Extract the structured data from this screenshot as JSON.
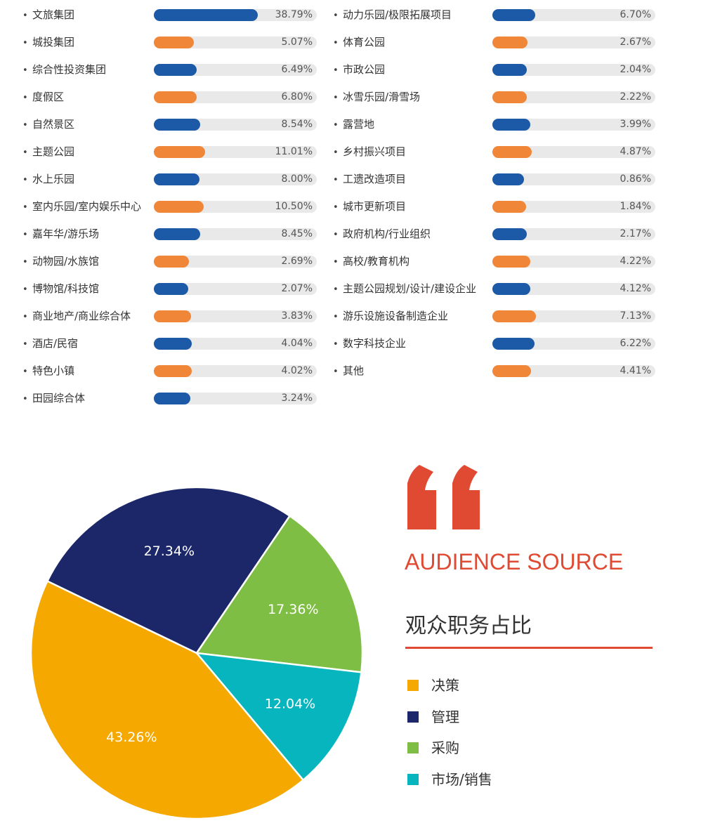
{
  "colors": {
    "bar_blue": "#1c5aa8",
    "bar_orange": "#f08637",
    "track": "#e9e9e9",
    "accent": "#e04a32"
  },
  "bars": {
    "bullet": "•",
    "left": [
      {
        "label": "文旅集团",
        "value": 38.79,
        "display": "38.79%"
      },
      {
        "label": "城投集团",
        "value": 5.07,
        "display": "5.07%"
      },
      {
        "label": "综合性投资集团",
        "value": 6.49,
        "display": "6.49%"
      },
      {
        "label": "度假区",
        "value": 6.8,
        "display": "6.80%"
      },
      {
        "label": "自然景区",
        "value": 8.54,
        "display": "8.54%"
      },
      {
        "label": "主题公园",
        "value": 11.01,
        "display": "11.01%"
      },
      {
        "label": "水上乐园",
        "value": 8.0,
        "display": "8.00%"
      },
      {
        "label": "室内乐园/室内娱乐中心",
        "value": 10.5,
        "display": "10.50%"
      },
      {
        "label": "嘉年华/游乐场",
        "value": 8.45,
        "display": "8.45%"
      },
      {
        "label": "动物园/水族馆",
        "value": 2.69,
        "display": "2.69%"
      },
      {
        "label": "博物馆/科技馆",
        "value": 2.07,
        "display": "2.07%"
      },
      {
        "label": "商业地产/商业综合体",
        "value": 3.83,
        "display": "3.83%"
      },
      {
        "label": "酒店/民宿",
        "value": 4.04,
        "display": "4.04%"
      },
      {
        "label": "特色小镇",
        "value": 4.02,
        "display": "4.02%"
      },
      {
        "label": "田园综合体",
        "value": 3.24,
        "display": "3.24%"
      }
    ],
    "right": [
      {
        "label": "动力乐园/极限拓展项目",
        "value": 6.7,
        "display": "6.70%"
      },
      {
        "label": "体育公园",
        "value": 2.67,
        "display": "2.67%"
      },
      {
        "label": "市政公园",
        "value": 2.04,
        "display": "2.04%"
      },
      {
        "label": "冰雪乐园/滑雪场",
        "value": 2.22,
        "display": "2.22%"
      },
      {
        "label": "露营地",
        "value": 3.99,
        "display": "3.99%"
      },
      {
        "label": "乡村振兴项目",
        "value": 4.87,
        "display": "4.87%"
      },
      {
        "label": "工遗改造项目",
        "value": 0.86,
        "display": "0.86%"
      },
      {
        "label": "城市更新项目",
        "value": 1.84,
        "display": "1.84%"
      },
      {
        "label": "政府机构/行业组织",
        "value": 2.17,
        "display": "2.17%"
      },
      {
        "label": "高校/教育机构",
        "value": 4.22,
        "display": "4.22%"
      },
      {
        "label": "主题公园规划/设计/建设企业",
        "value": 4.12,
        "display": "4.12%"
      },
      {
        "label": "游乐设施设备制造企业",
        "value": 7.13,
        "display": "7.13%"
      },
      {
        "label": "数字科技企业",
        "value": 6.22,
        "display": "6.22%"
      },
      {
        "label": "其他",
        "value": 4.41,
        "display": "4.41%"
      }
    ]
  },
  "section": {
    "eng_title": "AUDIENCE SOURCE",
    "cn_title": "观众职务占比"
  },
  "chart_data": [
    {
      "type": "bar",
      "categories": [
        "文旅集团",
        "城投集团",
        "综合性投资集团",
        "度假区",
        "自然景区",
        "主题公园",
        "水上乐园",
        "室内乐园/室内娱乐中心",
        "嘉年华/游乐场",
        "动物园/水族馆",
        "博物馆/科技馆",
        "商业地产/商业综合体",
        "酒店/民宿",
        "特色小镇",
        "田园综合体",
        "动力乐园/极限拓展项目",
        "体育公园",
        "市政公园",
        "冰雪乐园/滑雪场",
        "露营地",
        "乡村振兴项目",
        "工遗改造项目",
        "城市更新项目",
        "政府机构/行业组织",
        "高校/教育机构",
        "主题公园规划/设计/建设企业",
        "游乐设施设备制造企业",
        "数字科技企业",
        "其他"
      ],
      "values": [
        38.79,
        5.07,
        6.49,
        6.8,
        8.54,
        11.01,
        8.0,
        10.5,
        8.45,
        2.69,
        2.07,
        3.83,
        4.04,
        4.02,
        3.24,
        6.7,
        2.67,
        2.04,
        2.22,
        3.99,
        4.87,
        0.86,
        1.84,
        2.17,
        4.22,
        4.12,
        7.13,
        6.22,
        4.41
      ],
      "unit": "%"
    },
    {
      "type": "pie",
      "title": "观众职务占比",
      "slices": [
        {
          "label": "决策",
          "value": 43.26,
          "display": "43.26%",
          "color": "#f5a800"
        },
        {
          "label": "管理",
          "value": 27.34,
          "display": "27.34%",
          "color": "#1b2768"
        },
        {
          "label": "采购",
          "value": 17.36,
          "display": "17.36%",
          "color": "#7fbe44"
        },
        {
          "label": "市场/销售",
          "value": 12.04,
          "display": "12.04%",
          "color": "#06b5bd"
        }
      ],
      "legend": "right"
    }
  ]
}
